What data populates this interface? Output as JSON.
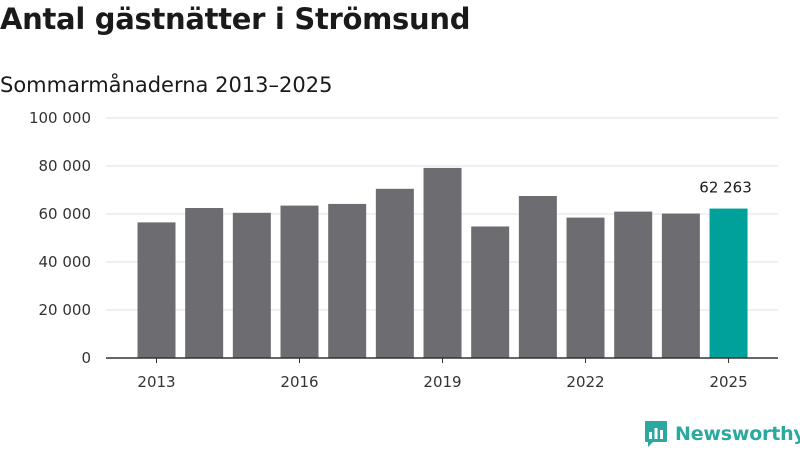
{
  "title": "Antal gästnätter i Strömsund",
  "subtitle": "Sommarmånaderna 2013–2025",
  "brand": {
    "name": "Newsworthy",
    "icon": "newsworthy-logo-icon",
    "color": "#2ba9a1"
  },
  "chart_data": {
    "type": "bar",
    "categories": [
      "2013",
      "2014",
      "2015",
      "2016",
      "2017",
      "2018",
      "2019",
      "2020",
      "2021",
      "2022",
      "2023",
      "2024",
      "2025"
    ],
    "values": [
      56500,
      62500,
      60500,
      63500,
      64200,
      70500,
      79200,
      54800,
      67500,
      58500,
      61000,
      60200,
      62263
    ],
    "x_tick_labels": [
      "2013",
      "2016",
      "2019",
      "2022",
      "2025"
    ],
    "y_ticks": [
      0,
      20000,
      40000,
      60000,
      80000,
      100000
    ],
    "y_tick_labels": [
      "0",
      "20 000",
      "40 000",
      "60 000",
      "80 000",
      "100 000"
    ],
    "ylim": [
      0,
      100000
    ],
    "grid": true,
    "colors": {
      "bar": "#6d6c70",
      "highlight": "#00a19a",
      "grid": "#e0e0e0",
      "axis": "#333333"
    },
    "highlight_category": "2025",
    "data_labels": [
      {
        "category": "2025",
        "text": "62 263"
      }
    ]
  }
}
